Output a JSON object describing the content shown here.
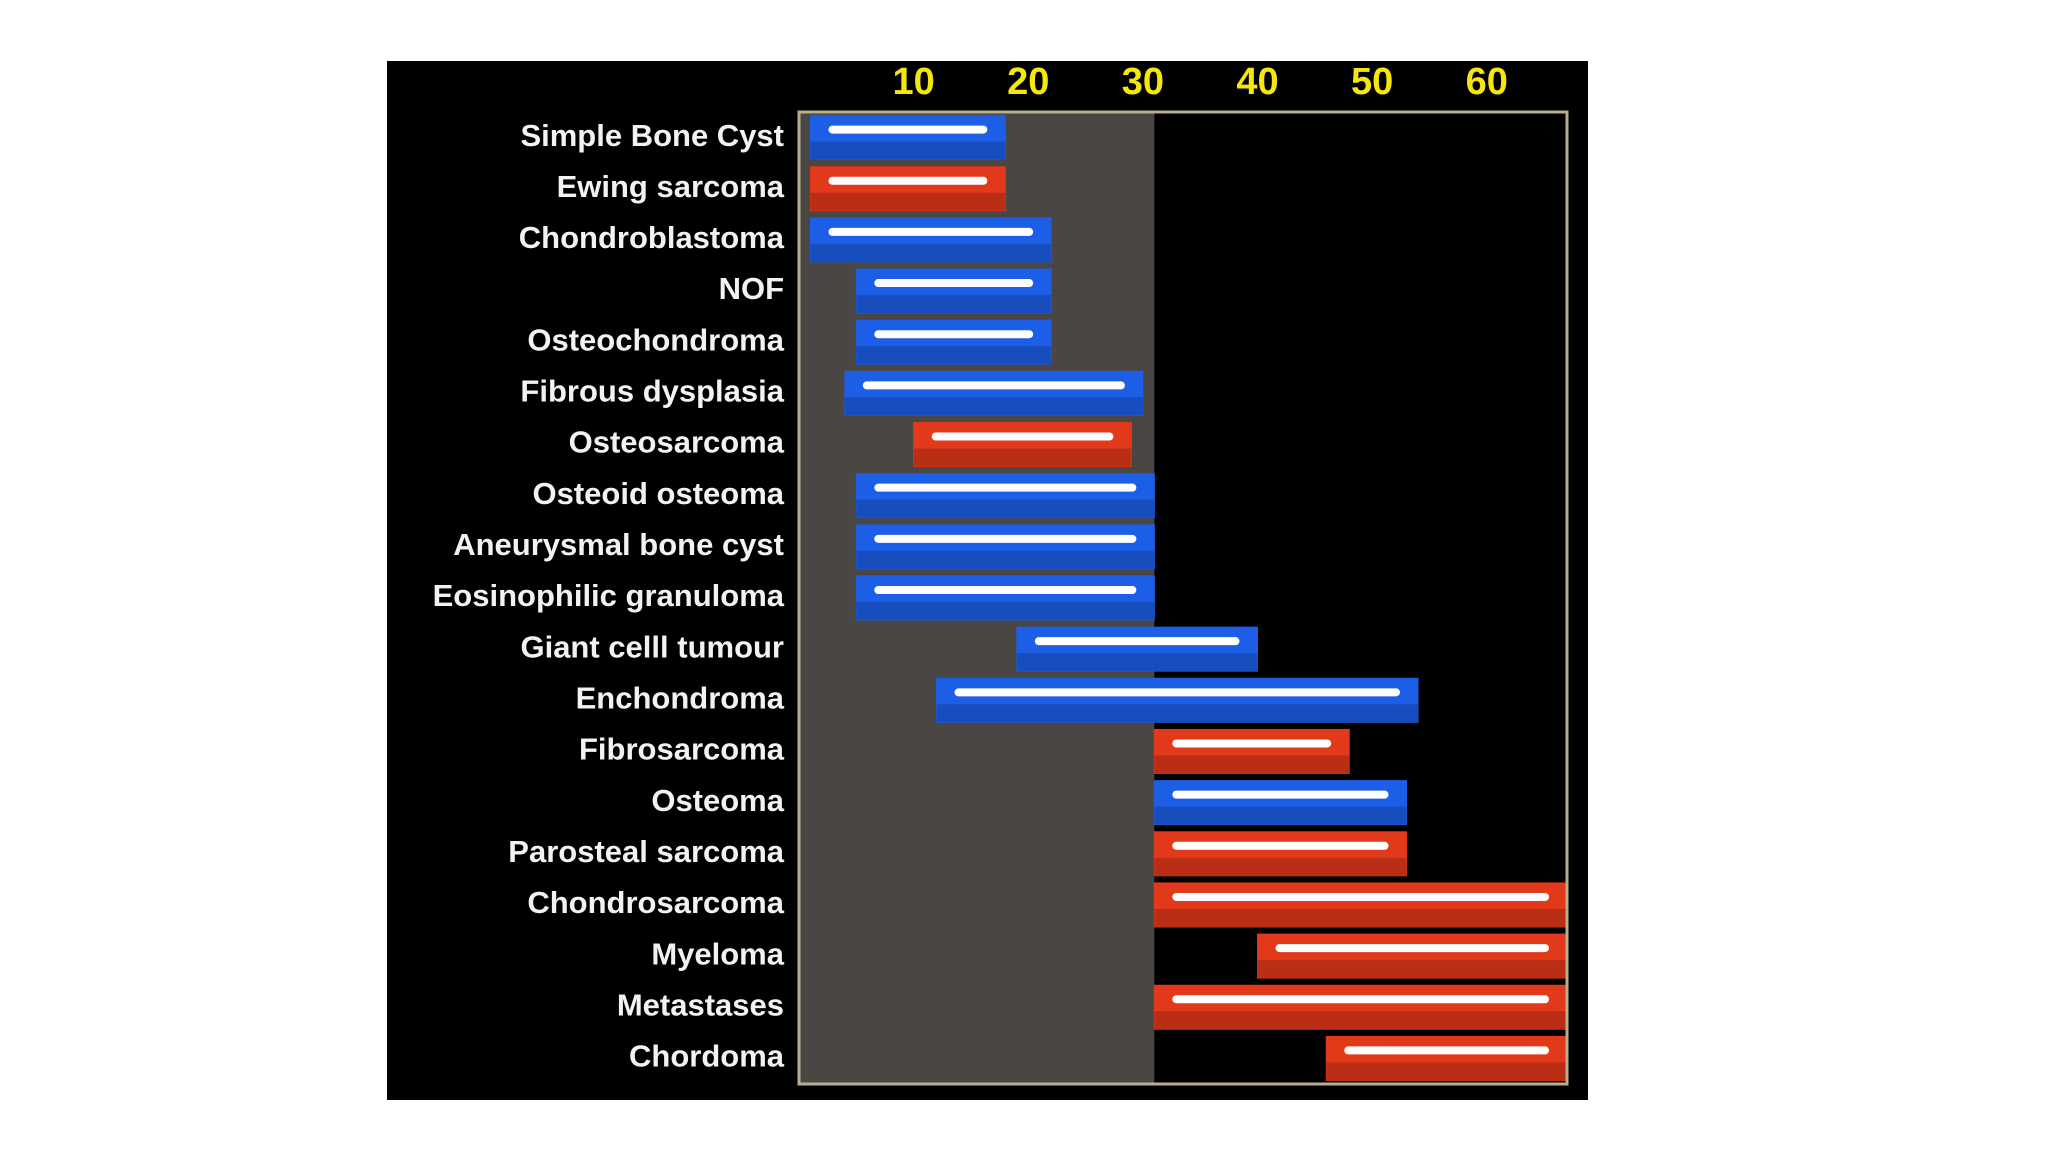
{
  "chart_data": {
    "type": "range-bar",
    "categories": [
      "Simple Bone Cyst",
      "Ewing sarcoma",
      "Chondroblastoma",
      "NOF",
      "Osteochondroma",
      "Fibrous dysplasia",
      "Osteosarcoma",
      "Osteoid osteoma",
      "Aneurysmal bone cyst",
      "Eosinophilic granuloma",
      "Giant celll tumour",
      "Enchondroma",
      "Fibrosarcoma",
      "Osteoma",
      "Parosteal sarcoma",
      "Chondrosarcoma",
      "Myeloma",
      "Metastases",
      "Chordoma"
    ],
    "values": [
      [
        1,
        18
      ],
      [
        1,
        18
      ],
      [
        1,
        22
      ],
      [
        5,
        22
      ],
      [
        5,
        22
      ],
      [
        4,
        30
      ],
      [
        10,
        29
      ],
      [
        5,
        31
      ],
      [
        5,
        31
      ],
      [
        5,
        31
      ],
      [
        19,
        40
      ],
      [
        12,
        54
      ],
      [
        31,
        48
      ],
      [
        31,
        53
      ],
      [
        31,
        53
      ],
      [
        31,
        67
      ],
      [
        40,
        67
      ],
      [
        31,
        67
      ],
      [
        46,
        67
      ]
    ],
    "colors": [
      "#1d5ee6",
      "#e2391a",
      "#1d5ee6",
      "#1d5ee6",
      "#1d5ee6",
      "#1d5ee6",
      "#e2391a",
      "#1d5ee6",
      "#1d5ee6",
      "#1d5ee6",
      "#1d5ee6",
      "#1d5ee6",
      "#e2391a",
      "#1d5ee6",
      "#e2391a",
      "#e2391a",
      "#e2391a",
      "#e2391a",
      "#e2391a"
    ],
    "xlim": [
      0,
      67
    ],
    "xticks": [
      10,
      20,
      30,
      40,
      50,
      60
    ],
    "shaded_range": [
      0,
      31
    ],
    "shade_color": "#4a4644",
    "grid": false
  }
}
